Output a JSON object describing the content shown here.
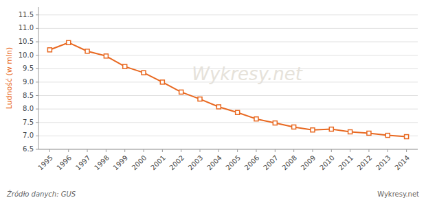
{
  "chart_data": {
    "type": "line",
    "x": [
      1995,
      1996,
      1997,
      1998,
      1999,
      2000,
      2001,
      2002,
      2003,
      2004,
      2005,
      2006,
      2007,
      2008,
      2009,
      2010,
      2011,
      2012,
      2013,
      2014
    ],
    "values": [
      10.2,
      10.47,
      10.15,
      9.97,
      9.58,
      9.35,
      9.0,
      8.63,
      8.37,
      8.08,
      7.87,
      7.63,
      7.48,
      7.33,
      7.22,
      7.25,
      7.15,
      7.1,
      7.02,
      6.97
    ],
    "color": "#E86820",
    "marker": "square",
    "y_label": "Ludność (w mln)",
    "xlim": [
      1994.4,
      2014.6
    ],
    "xticks": [
      1995,
      1996,
      1997,
      1998,
      1999,
      2000,
      2001,
      2002,
      2003,
      2004,
      2005,
      2006,
      2007,
      2008,
      2009,
      2010,
      2011,
      2012,
      2013,
      2014
    ],
    "ylim": [
      6.5,
      11.8
    ],
    "yticks": [
      6.5,
      {
        "value": 7.0,
        "label": "7.0"
      },
      7.5,
      {
        "value": 8.0,
        "label": "8.0"
      },
      8.5,
      {
        "value": 9.0,
        "label": "9.0"
      },
      9.5,
      {
        "value": 10.0,
        "label": "10.0"
      },
      10.5,
      {
        "value": 11.0,
        "label": "11.0"
      },
      11.5
    ],
    "grid": true,
    "annotations": [
      "Źródło danych:  GUS",
      "Wykresy.net"
    ]
  }
}
